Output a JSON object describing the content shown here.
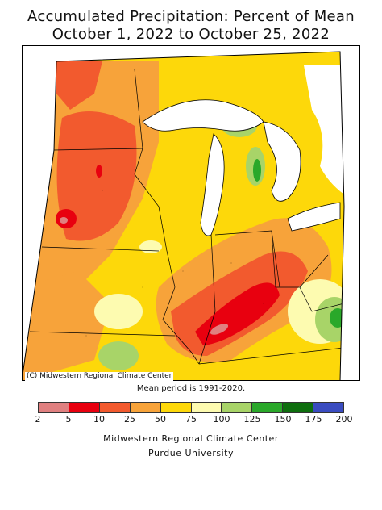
{
  "title_line1": "Accumulated Precipitation: Percent of Mean",
  "title_line2": "October 1, 2022 to October 25, 2022",
  "credit": "(C) Midwestern Regional Climate Center",
  "mean_period": "Mean period is 1991-2020.",
  "legend": {
    "colors": [
      "#e08080",
      "#e8000f",
      "#f25a2e",
      "#f7a33a",
      "#fdd80a",
      "#fdfbb0",
      "#a8d468",
      "#2aa82a",
      "#0e6e0e",
      "#3a4cc0"
    ],
    "ticks": [
      "2",
      "5",
      "10",
      "25",
      "50",
      "75",
      "100",
      "125",
      "150",
      "175",
      "200"
    ]
  },
  "footer_line1": "Midwestern Regional Climate Center",
  "footer_line2": "Purdue University"
}
